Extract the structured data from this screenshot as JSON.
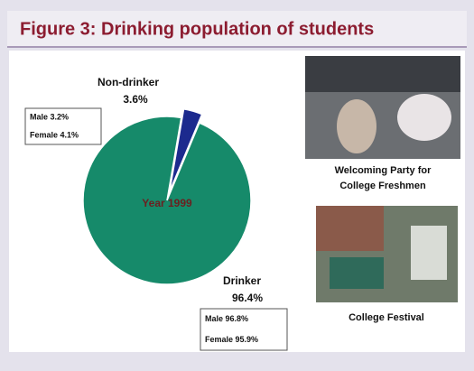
{
  "chart_data": {
    "type": "pie",
    "title": "Figure 3: Drinking population of students",
    "center_label": "Year 1999",
    "categories": [
      "Non-drinker",
      "Drinker"
    ],
    "values": [
      3.6,
      96.4
    ],
    "value_labels": [
      "3.6%",
      "96.4%"
    ],
    "colors": [
      "#1c2a8e",
      "#168a6a"
    ],
    "annotations": [
      {
        "lines": [
          "Male 3.2%",
          "Female 4.1%"
        ]
      },
      {
        "lines": [
          "Male 96.8%",
          "Female 95.9%"
        ]
      }
    ]
  },
  "photos": [
    {
      "caption": [
        "Welcoming Party for",
        "College Freshmen"
      ]
    },
    {
      "caption": [
        "College Festival"
      ]
    }
  ]
}
